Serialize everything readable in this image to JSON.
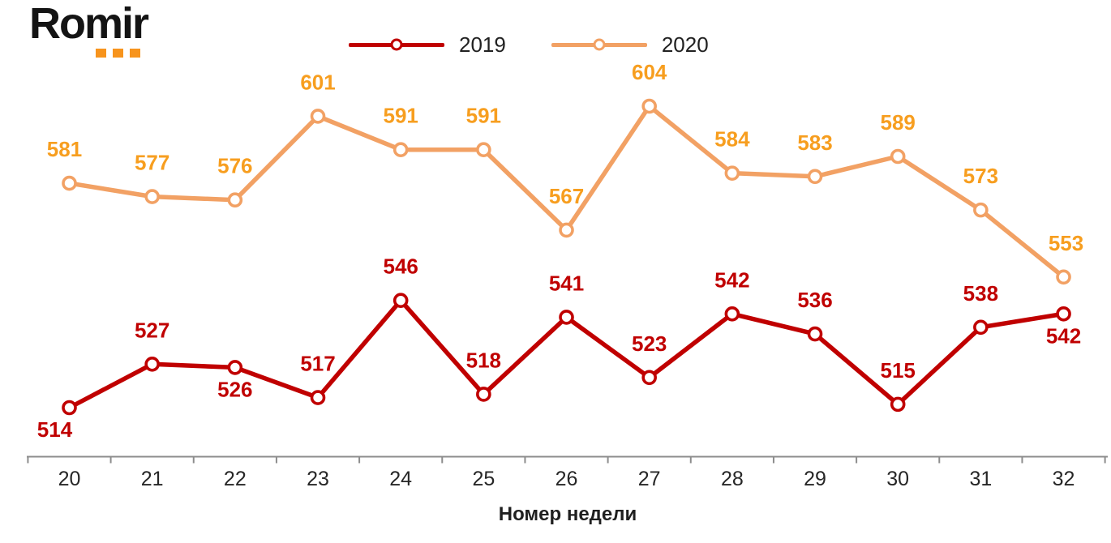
{
  "logo": {
    "text": "Romir",
    "dot_color": "#F7941D",
    "dot_count": 3
  },
  "legend": {
    "items": [
      {
        "label": "2019",
        "color": "#C00000"
      },
      {
        "label": "2020",
        "color": "#F2A164"
      }
    ]
  },
  "chart_data": {
    "type": "line",
    "x": [
      20,
      21,
      22,
      23,
      24,
      25,
      26,
      27,
      28,
      29,
      30,
      31,
      32
    ],
    "xlabel": "Номер недели",
    "ylabel": "",
    "grid": false,
    "legend_position": "top",
    "axis_color": "#8C8C8C",
    "tick_label_color": "#262626",
    "ylim": [
      505,
      615
    ],
    "series": [
      {
        "name": "2019",
        "color": "#C00000",
        "label_color": "#C00000",
        "marker": "open-circle",
        "values": [
          514,
          527,
          526,
          517,
          546,
          518,
          541,
          523,
          542,
          536,
          515,
          538,
          542
        ],
        "label_positions": [
          "below",
          "above",
          "below",
          "above",
          "above",
          "above",
          "above",
          "above",
          "above",
          "above",
          "above",
          "above",
          "below"
        ],
        "label_dx": [
          -18,
          0,
          0,
          0,
          0,
          0,
          0,
          0,
          0,
          0,
          0,
          0,
          0
        ]
      },
      {
        "name": "2020",
        "color": "#F2A164",
        "label_color": "#F79E1F",
        "marker": "open-circle",
        "values": [
          581,
          577,
          576,
          601,
          591,
          591,
          567,
          604,
          584,
          583,
          589,
          573,
          553
        ],
        "label_positions": [
          "above",
          "above",
          "above",
          "above",
          "above",
          "above",
          "above",
          "above",
          "above",
          "above",
          "above",
          "above",
          "above"
        ],
        "label_dx": [
          -6,
          0,
          0,
          0,
          0,
          0,
          0,
          0,
          0,
          0,
          0,
          0,
          3
        ]
      }
    ]
  }
}
